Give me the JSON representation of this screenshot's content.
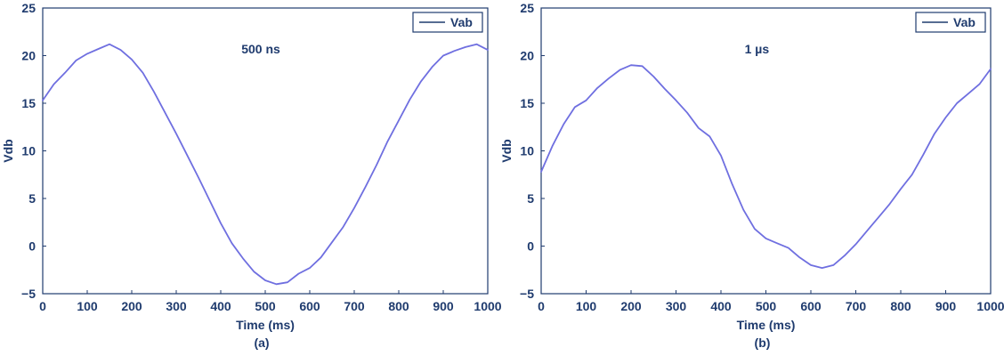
{
  "colors": {
    "text": "#1f3b6e",
    "axis": "#1f3b6e",
    "series": "#6f6fe0",
    "legend_line": "#1f3b6e"
  },
  "chart_data": [
    {
      "type": "line",
      "title": "",
      "annotation": "500 ns",
      "panel_label": "(a)",
      "xlabel": "Time (ms)",
      "ylabel": "Vdb",
      "xlim": [
        0,
        1000
      ],
      "ylim": [
        -5,
        25
      ],
      "xticks": [
        "0",
        "100",
        "200",
        "300",
        "400",
        "500",
        "600",
        "700",
        "800",
        "900",
        "1000"
      ],
      "yticks": [
        "−5",
        "0",
        "5",
        "10",
        "15",
        "20",
        "25"
      ],
      "grid": false,
      "legend": "top-right",
      "series": [
        {
          "name": "Vab",
          "x": [
            0,
            25,
            50,
            75,
            100,
            125,
            150,
            175,
            200,
            225,
            250,
            275,
            300,
            325,
            350,
            375,
            400,
            425,
            450,
            475,
            500,
            525,
            550,
            575,
            600,
            625,
            650,
            675,
            700,
            725,
            750,
            775,
            800,
            825,
            850,
            875,
            900,
            925,
            950,
            975,
            1000
          ],
          "values": [
            15.3,
            17.0,
            18.2,
            19.5,
            20.2,
            20.7,
            21.2,
            20.6,
            19.6,
            18.2,
            16.2,
            14.0,
            11.8,
            9.5,
            7.2,
            4.8,
            2.4,
            0.3,
            -1.3,
            -2.7,
            -3.6,
            -4.0,
            -3.8,
            -2.9,
            -2.3,
            -1.2,
            0.4,
            2.0,
            4.0,
            6.2,
            8.5,
            11.0,
            13.2,
            15.4,
            17.3,
            18.8,
            20.0,
            20.5,
            20.9,
            21.2,
            20.6
          ]
        }
      ]
    },
    {
      "type": "line",
      "title": "",
      "annotation": "1 µs",
      "panel_label": "(b)",
      "xlabel": "Time (ms)",
      "ylabel": "Vdb",
      "xlim": [
        0,
        1000
      ],
      "ylim": [
        -5,
        25
      ],
      "xticks": [
        "0",
        "100",
        "200",
        "300",
        "400",
        "500",
        "600",
        "700",
        "800",
        "900",
        "1000"
      ],
      "yticks": [
        "−5",
        "0",
        "5",
        "10",
        "15",
        "20",
        "25"
      ],
      "grid": false,
      "legend": "top-right",
      "series": [
        {
          "name": "Vab",
          "x": [
            0,
            25,
            50,
            75,
            100,
            125,
            150,
            175,
            200,
            225,
            250,
            275,
            300,
            325,
            350,
            375,
            400,
            425,
            450,
            475,
            500,
            525,
            550,
            575,
            600,
            625,
            650,
            675,
            700,
            725,
            750,
            775,
            800,
            825,
            850,
            875,
            900,
            925,
            950,
            975,
            1000
          ],
          "values": [
            7.8,
            10.5,
            12.8,
            14.6,
            15.3,
            16.6,
            17.6,
            18.5,
            19.0,
            18.9,
            17.8,
            16.5,
            15.3,
            14.0,
            12.4,
            11.5,
            9.5,
            6.5,
            3.8,
            1.8,
            0.8,
            0.3,
            -0.2,
            -1.2,
            -2.0,
            -2.3,
            -2.0,
            -1.0,
            0.2,
            1.6,
            3.0,
            4.4,
            6.0,
            7.5,
            9.6,
            11.8,
            13.5,
            15.0,
            16.0,
            17.0,
            18.6
          ]
        }
      ]
    }
  ]
}
